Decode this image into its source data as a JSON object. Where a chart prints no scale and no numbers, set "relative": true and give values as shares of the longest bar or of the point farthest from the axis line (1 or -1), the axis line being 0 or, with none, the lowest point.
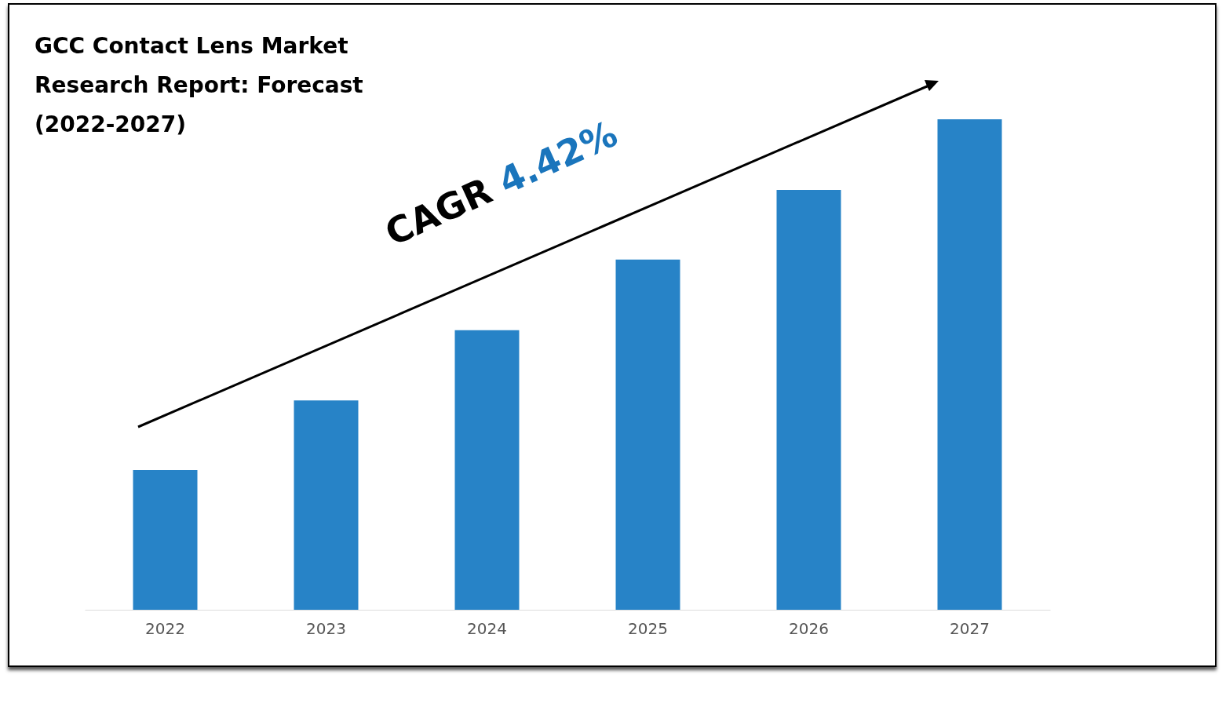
{
  "chart_data": {
    "type": "bar",
    "title": "GCC Contact Lens Market Research Report: Forecast (2022-2027)",
    "categories": [
      "2022",
      "2023",
      "2024",
      "2025",
      "2026",
      "2027"
    ],
    "values": [
      0.285,
      0.427,
      0.57,
      0.714,
      0.856,
      1
    ],
    "relative": true,
    "color": "#2783c7",
    "annotations": [
      "CAGR 4.42%"
    ]
  }
}
